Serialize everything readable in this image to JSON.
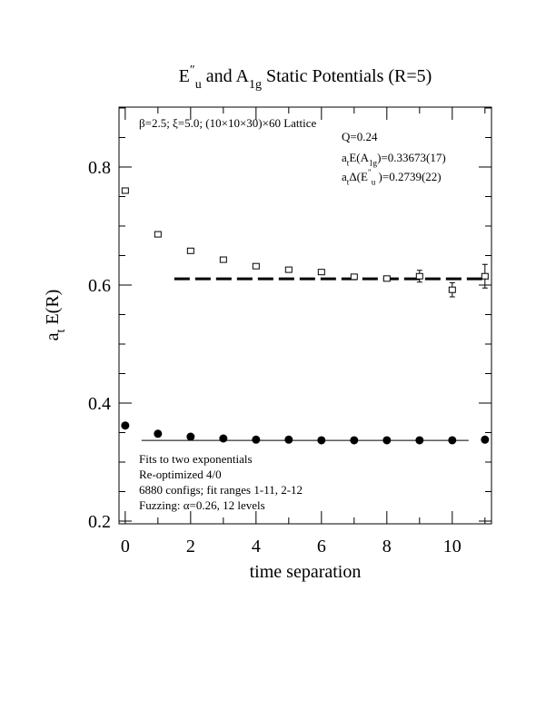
{
  "chart_data": {
    "type": "scatter",
    "title": [
      {
        "text": "E"
      },
      {
        "text": "″",
        "style": "sup"
      },
      {
        "text": "u",
        "style": "sub"
      },
      {
        "text": "  and A"
      },
      {
        "text": "1g",
        "style": "sub"
      },
      {
        "text": " Static Potentials (R=5)"
      }
    ],
    "x_label": [
      {
        "text": "time separation"
      }
    ],
    "y_label": [
      {
        "text": "a"
      },
      {
        "text": "t",
        "style": "sub"
      },
      {
        "text": " E(R)"
      }
    ],
    "xlim": [
      -0.19,
      11.2
    ],
    "ylim": [
      0.1954,
      0.9015
    ],
    "xticks": [
      0,
      2,
      4,
      6,
      8,
      10
    ],
    "xminor": [
      1,
      3,
      5,
      7,
      9,
      11
    ],
    "yticks": [
      0.2,
      0.4,
      0.6,
      0.8
    ],
    "yminor": [
      0.25,
      0.3,
      0.35,
      0.45,
      0.5,
      0.55,
      0.65,
      0.7,
      0.75,
      0.85,
      0.9
    ],
    "series": [
      {
        "marker": "open-square",
        "color": "#000000",
        "x": [
          0,
          1,
          2,
          3,
          4,
          5,
          6,
          7,
          8,
          9,
          10,
          11
        ],
        "values": [
          0.76,
          0.686,
          0.658,
          0.643,
          0.632,
          0.626,
          0.622,
          0.614,
          0.611,
          0.615,
          0.592,
          0.615
        ],
        "errors": [
          0.003,
          0.003,
          0.003,
          0.003,
          0.003,
          0.003,
          0.003,
          0.004,
          0.004,
          0.01,
          0.012,
          0.02
        ]
      },
      {
        "marker": "filled-circle",
        "color": "#000000",
        "x": [
          0,
          1,
          2,
          3,
          4,
          5,
          6,
          7,
          8,
          9,
          10,
          11
        ],
        "values": [
          0.362,
          0.348,
          0.343,
          0.34,
          0.338,
          0.338,
          0.337,
          0.337,
          0.337,
          0.337,
          0.337,
          0.338
        ]
      }
    ],
    "fits": [
      {
        "x": [
          1.5,
          11.1
        ],
        "value": 0.6106,
        "dash": true
      },
      {
        "x": [
          0.5,
          10.5
        ],
        "value": 0.3367,
        "dash": false
      }
    ],
    "annotations_top": [
      [
        {
          "text": "β=2.5; ξ=5.0; (10×10×30)×60 Lattice"
        }
      ],
      [
        {
          "text": "Q=0.24"
        }
      ],
      [
        {
          "text": "a"
        },
        {
          "text": "t",
          "style": "sub"
        },
        {
          "text": "E(A"
        },
        {
          "text": "1g",
          "style": "sub"
        },
        {
          "text": ")=0.33673(17)"
        }
      ],
      [
        {
          "text": "a"
        },
        {
          "text": "t",
          "style": "sub"
        },
        {
          "text": "Δ(E"
        },
        {
          "text": "″",
          "style": "sup"
        },
        {
          "text": "u",
          "style": "sub"
        },
        {
          "text": " )=0.2739(22)"
        }
      ]
    ],
    "annotations_bottom": [
      [
        {
          "text": "Fits to two exponentials"
        }
      ],
      [
        {
          "text": "Re-optimized 4/0"
        }
      ],
      [
        {
          "text": "6880 configs; fit ranges 1-11, 2-12"
        }
      ],
      [
        {
          "text": "Fuzzing: α=0.26, 12 levels"
        }
      ]
    ]
  }
}
